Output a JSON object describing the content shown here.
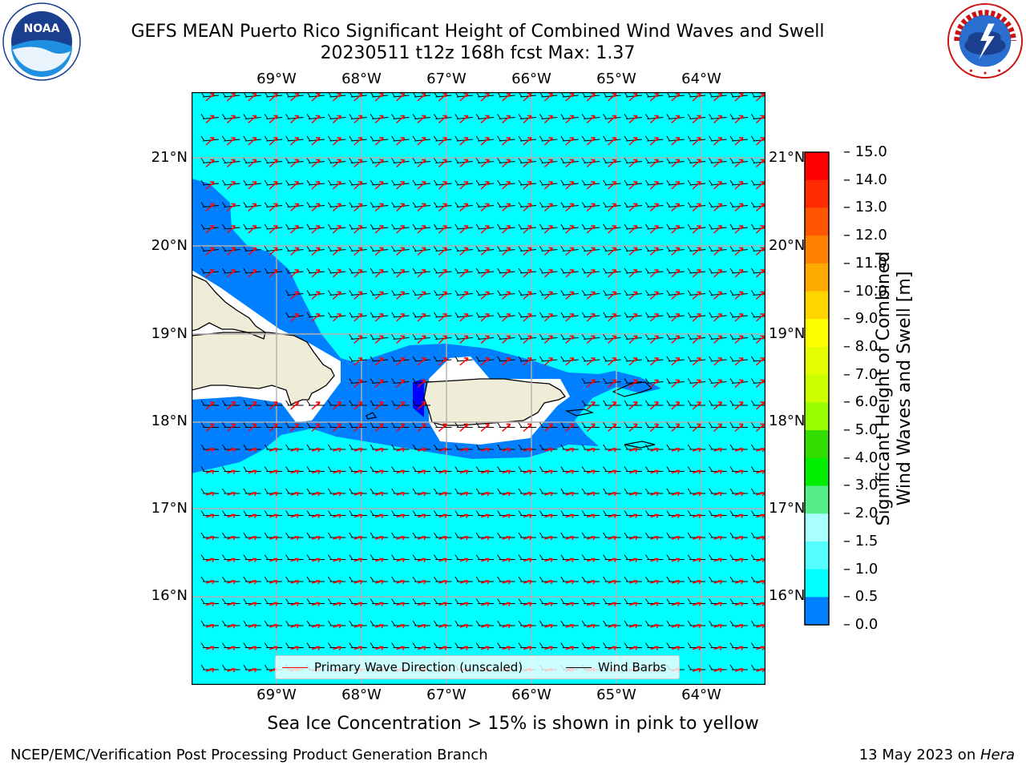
{
  "header": {
    "title_line1": "GEFS MEAN Puerto Rico Significant Height of Combined Wind Waves and Swell",
    "title_line2": "20230511 t12z 168h fcst   Max: 1.37"
  },
  "logos": {
    "left": {
      "icon": "noaa-logo-icon",
      "text": "NOAA"
    },
    "right": {
      "icon": "nws-logo-icon",
      "text": "NATIONAL WEATHER SERVICE"
    }
  },
  "map": {
    "lon_labels": [
      "69°W",
      "68°W",
      "67°W",
      "66°W",
      "65°W",
      "64°W"
    ],
    "lat_labels": [
      "21°N",
      "20°N",
      "19°N",
      "18°N",
      "17°N",
      "16°N"
    ],
    "ocean_color": "#00ffff",
    "band_color": "#0080ff",
    "deep_band_color": "#0000ff",
    "land_color": "#efedd8"
  },
  "colorbar": {
    "title_line1": "Significant Height of Combined",
    "title_line2": "Wind Waves and Swell [m]",
    "ticks": [
      "15.0",
      "14.0",
      "13.0",
      "12.0",
      "11.0",
      "10.0",
      "9.0",
      "8.0",
      "7.0",
      "6.0",
      "5.0",
      "4.0",
      "3.0",
      "2.0",
      "1.5",
      "1.0",
      "0.5",
      "0.0"
    ],
    "colors": [
      "#ff0000",
      "#ff2a00",
      "#ff5500",
      "#ff8000",
      "#ffaa00",
      "#ffd500",
      "#ffff00",
      "#e6ff00",
      "#ccff00",
      "#99ff00",
      "#33dd00",
      "#00ee00",
      "#55ee88",
      "#aaffff",
      "#55ffff",
      "#00ffff",
      "#0080ff",
      "#0000ff"
    ]
  },
  "legend": {
    "primary_wave": "Primary Wave Direction (unscaled)",
    "wind_barbs": "Wind Barbs",
    "primary_wave_color": "#ff0000",
    "wind_barbs_color": "#000000"
  },
  "note": "Sea Ice Concentration > 15% is shown in pink to yellow",
  "footer": {
    "left": "NCEP/EMC/Verification Post Processing Product Generation Branch",
    "date": "13 May 2023 on ",
    "machine": "Hera"
  }
}
